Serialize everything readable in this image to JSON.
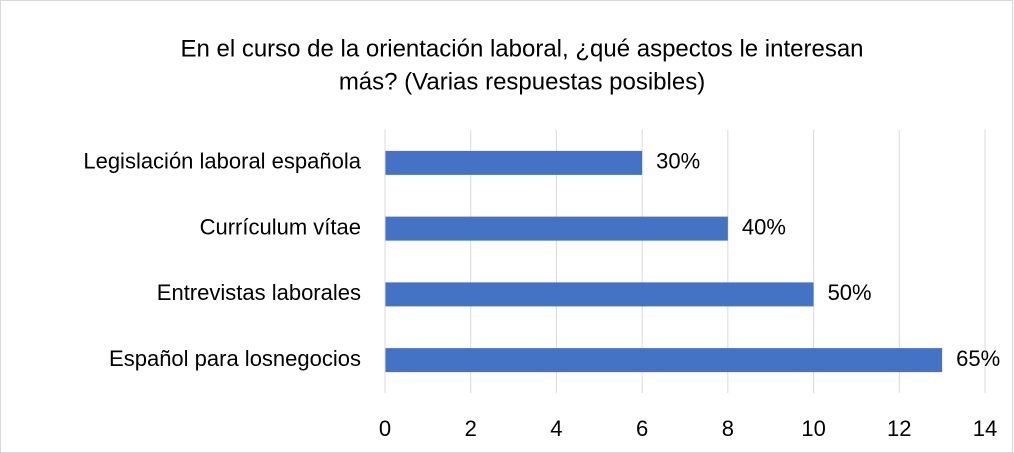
{
  "chart_data": {
    "type": "barh",
    "title": [
      "En el curso de la orientación laboral, ¿qué aspectos le interesan",
      "más? (Varias respuestas posibles)"
    ],
    "categories": [
      "Legislación laboral española",
      "Currículum vítae",
      "Entrevistas laborales",
      "Español para losnegocios"
    ],
    "values": [
      6,
      8,
      10,
      13
    ],
    "value_labels": [
      "30%",
      "40%",
      "50%",
      "65%"
    ],
    "color": "#4472c4",
    "xlim": [
      0,
      14
    ],
    "xticks": [
      0,
      2,
      4,
      6,
      8,
      10,
      12,
      14
    ],
    "grid": true
  }
}
